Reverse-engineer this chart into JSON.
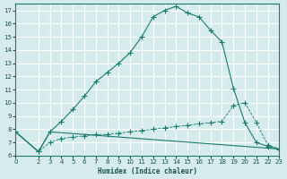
{
  "xlabel": "Humidex (Indice chaleur)",
  "x_ticks": [
    0,
    2,
    3,
    4,
    5,
    6,
    7,
    8,
    9,
    10,
    11,
    12,
    13,
    14,
    15,
    16,
    17,
    18,
    19,
    20,
    21,
    22,
    23
  ],
  "ylim": [
    6,
    17.5
  ],
  "xlim": [
    0,
    23
  ],
  "y_ticks": [
    6,
    7,
    8,
    9,
    10,
    11,
    12,
    13,
    14,
    15,
    16,
    17
  ],
  "bg_color": "#d6ecec",
  "line_color": "#1a7a6e",
  "grid_color": "#ffffff",
  "line1_x": [
    0,
    2,
    3,
    4,
    5,
    6,
    7,
    8,
    9,
    10,
    11,
    12,
    13,
    14,
    15,
    16,
    17,
    18,
    19,
    20,
    21,
    22,
    23
  ],
  "line1_y": [
    7.8,
    6.3,
    7.8,
    8.6,
    9.5,
    10.5,
    11.6,
    12.3,
    13.0,
    13.8,
    15.0,
    16.5,
    17.0,
    17.3,
    16.8,
    16.5,
    15.5,
    14.6,
    11.1,
    8.5,
    7.0,
    6.7,
    6.5
  ],
  "line2_x": [
    0,
    2,
    3,
    4,
    5,
    6,
    7,
    8,
    9,
    10,
    11,
    12,
    13,
    14,
    15,
    16,
    17,
    18,
    19,
    20,
    21,
    22,
    23
  ],
  "line2_y": [
    7.8,
    6.3,
    7.0,
    7.3,
    7.4,
    7.5,
    7.6,
    7.6,
    7.7,
    7.8,
    7.9,
    8.0,
    8.1,
    8.2,
    8.3,
    8.4,
    8.5,
    8.6,
    9.8,
    10.0,
    8.5,
    6.8,
    6.5
  ],
  "line3_x": [
    0,
    2,
    3,
    23
  ],
  "line3_y": [
    7.8,
    6.3,
    7.8,
    6.5
  ]
}
